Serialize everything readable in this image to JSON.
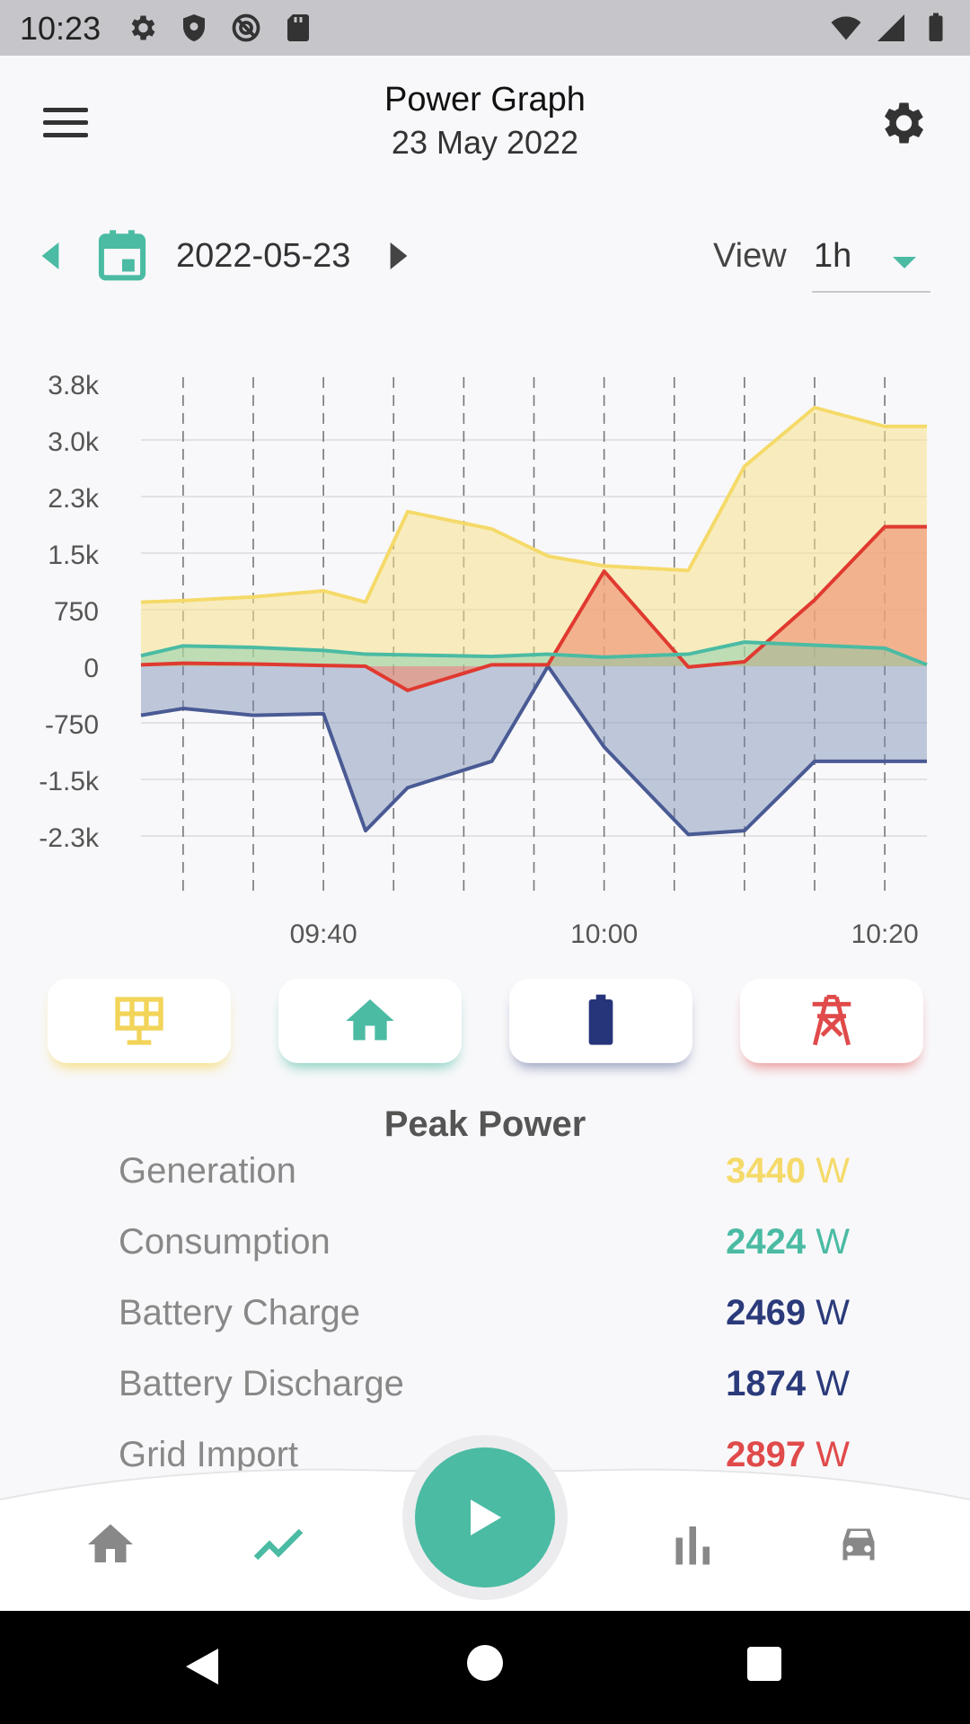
{
  "status_bar": {
    "time": "10:23"
  },
  "header": {
    "title": "Power Graph",
    "subtitle": "23 May 2022"
  },
  "date_nav": {
    "date": "2022-05-23",
    "view_label": "View",
    "view_value": "1h"
  },
  "colors": {
    "generation": "#f5da6a",
    "consumption": "#4bbba3",
    "battery": "#2a3a7a",
    "grid": "#e04a4a",
    "accent": "#4bbba3"
  },
  "chart_data": {
    "type": "area",
    "x": [
      "09:27",
      "09:30",
      "09:35",
      "09:40",
      "09:43",
      "09:46",
      "09:52",
      "09:56",
      "10:00",
      "10:06",
      "10:10",
      "10:15",
      "10:20",
      "10:23"
    ],
    "y_ticks": [
      "3.8k",
      "3.0k",
      "2.3k",
      "1.5k",
      "750",
      "0",
      "-750",
      "-1.5k",
      "-2.3k"
    ],
    "x_ticks": [
      {
        "label": "09:40",
        "value": "09:40"
      },
      {
        "label": "10:00",
        "value": "10:00"
      },
      {
        "label": "10:20",
        "value": "10:20"
      }
    ],
    "grid": true,
    "ylim": [
      -2300,
      3800
    ],
    "series": [
      {
        "key": "generation",
        "values": [
          850,
          870,
          920,
          1000,
          850,
          2050,
          1820,
          1460,
          1330,
          1270,
          2650,
          3430,
          3180,
          3180
        ]
      },
      {
        "key": "consumption",
        "values": [
          140,
          270,
          250,
          210,
          160,
          150,
          130,
          160,
          120,
          160,
          320,
          280,
          240,
          20
        ]
      },
      {
        "key": "grid",
        "values": [
          20,
          40,
          30,
          10,
          0,
          -320,
          20,
          20,
          1260,
          -10,
          60,
          880,
          1850,
          1850
        ]
      },
      {
        "key": "battery",
        "values": [
          -650,
          -560,
          -650,
          -630,
          -2180,
          -1610,
          -1260,
          0,
          -1070,
          -2230,
          -2180,
          -1260,
          -1260,
          -1260
        ]
      }
    ]
  },
  "legend": [
    {
      "key": "generation",
      "icon": "solar-panel-icon"
    },
    {
      "key": "consumption",
      "icon": "home-icon"
    },
    {
      "key": "battery",
      "icon": "battery-icon"
    },
    {
      "key": "grid",
      "icon": "power-pylon-icon"
    }
  ],
  "peak_power": {
    "title": "Peak Power",
    "rows": [
      {
        "label": "Generation",
        "value": "3440",
        "unit": "W",
        "color": "#f5da6a"
      },
      {
        "label": "Consumption",
        "value": "2424",
        "unit": "W",
        "color": "#4bbba3"
      },
      {
        "label": "Battery Charge",
        "value": "2469",
        "unit": "W",
        "color": "#2a3a7a"
      },
      {
        "label": "Battery Discharge",
        "value": "1874",
        "unit": "W",
        "color": "#2a3a7a"
      },
      {
        "label": "Grid Import",
        "value": "2897",
        "unit": "W",
        "color": "#e04a4a"
      }
    ]
  },
  "bottom_nav": [
    {
      "key": "home",
      "icon": "home-icon"
    },
    {
      "key": "power-graph",
      "icon": "trend-line-icon",
      "active": true
    },
    {
      "key": "play",
      "icon": "play-icon"
    },
    {
      "key": "statistics",
      "icon": "bar-chart-icon"
    },
    {
      "key": "vehicle",
      "icon": "car-icon"
    }
  ]
}
